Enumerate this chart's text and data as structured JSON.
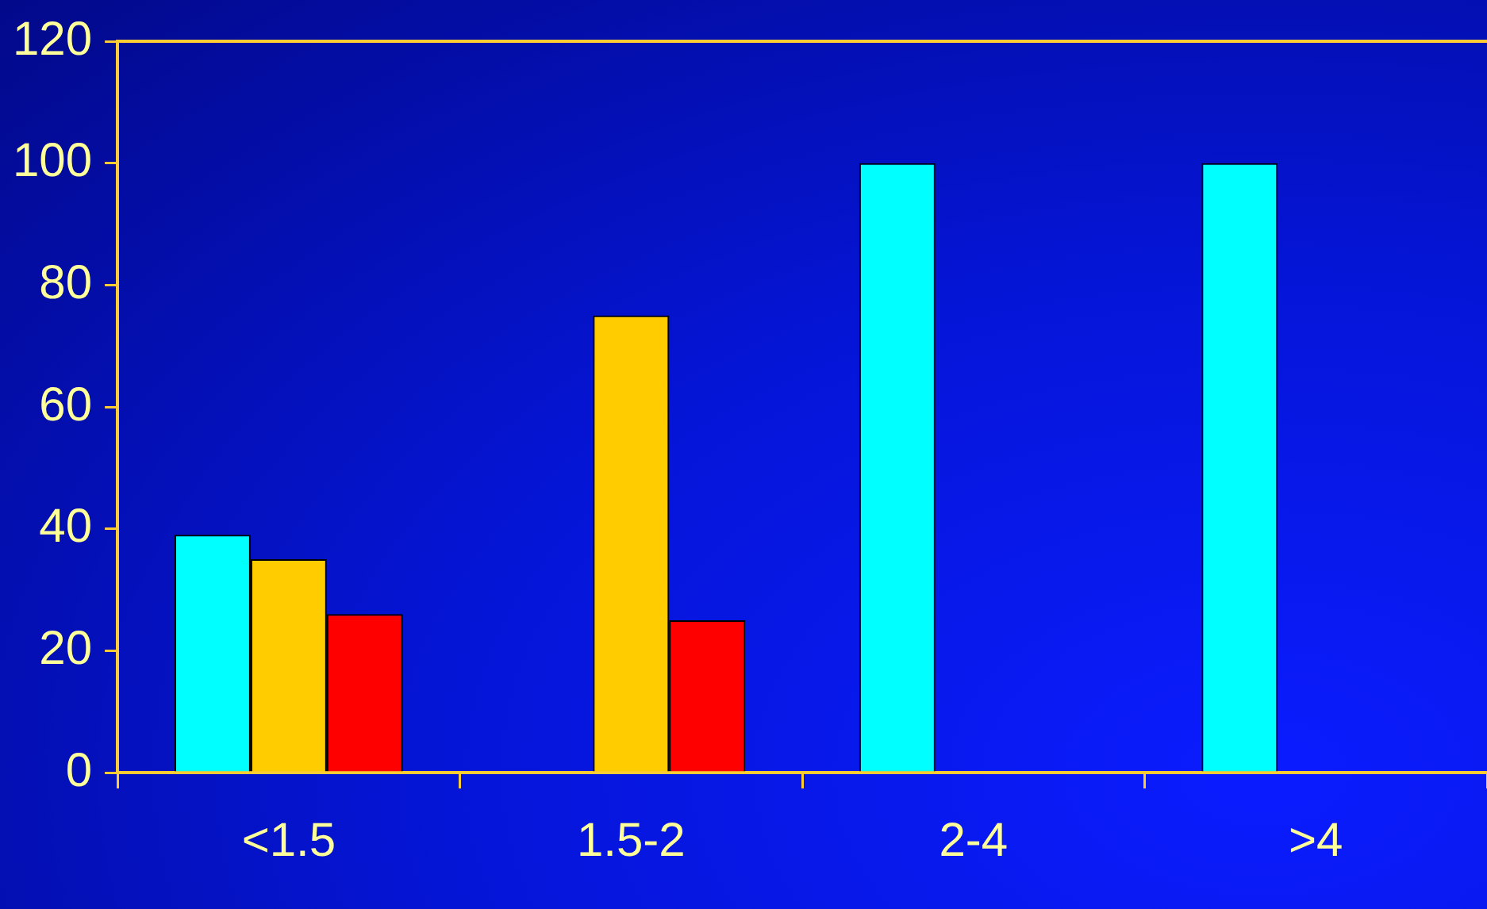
{
  "chart_data": {
    "type": "bar",
    "categories": [
      "<1.5",
      "1.5-2",
      "2-4",
      ">4"
    ],
    "series": [
      {
        "color": "#00ffff",
        "values": [
          39,
          null,
          100,
          100
        ]
      },
      {
        "color": "#ffcc00",
        "values": [
          35,
          75,
          null,
          null
        ]
      },
      {
        "color": "#ff0000",
        "values": [
          26,
          25,
          null,
          null
        ]
      }
    ],
    "ylim": [
      0,
      120
    ],
    "yticks": [
      0,
      20,
      40,
      60,
      80,
      100,
      120
    ],
    "grid": false,
    "legend": false
  }
}
